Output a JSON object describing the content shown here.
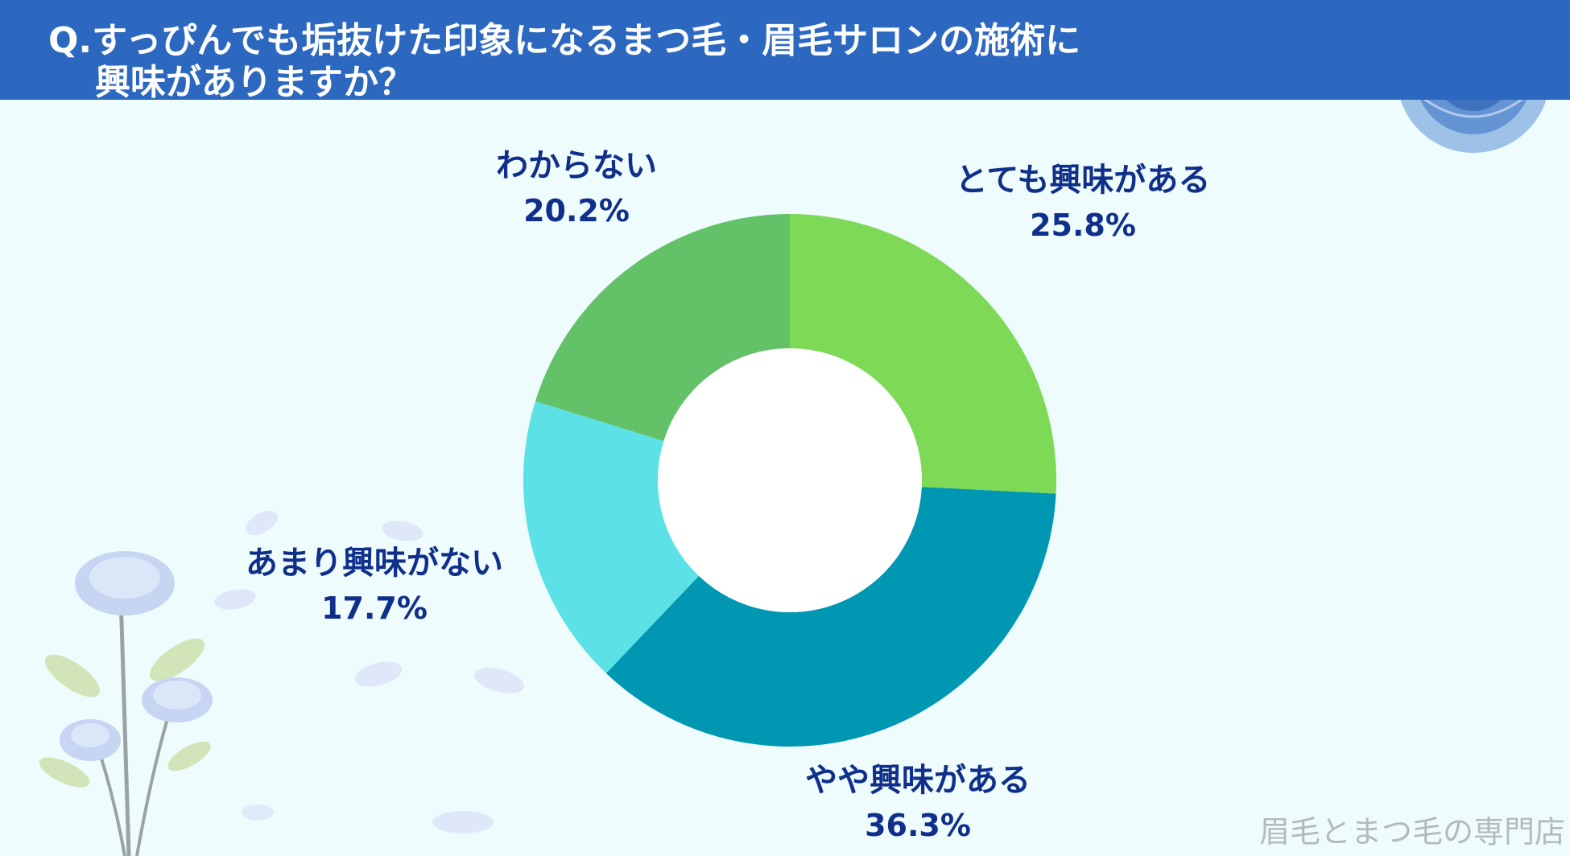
{
  "header": {
    "question_line1": "Q.すっぴんでも垢抜けた印象になるまつ毛・眉毛サロンの施術に",
    "question_line2": "興味がありますか？"
  },
  "watermark": "眉毛とまつ毛の専門店",
  "colors": {
    "header_bg": "#2d68c0",
    "page_bg": "#effcfd",
    "label_text": "#0f2f8a"
  },
  "chart_data": {
    "type": "pie",
    "style": "donut",
    "start_angle": "12 o'clock",
    "direction": "clockwise",
    "title": "",
    "slices": [
      {
        "label": "とても興味がある",
        "value": 25.8,
        "value_label": "25.8%",
        "color": "#7ed957"
      },
      {
        "label": "やや興味がある",
        "value": 36.3,
        "value_label": "36.3%",
        "color": "#0097b2"
      },
      {
        "label": "あまり興味がない",
        "value": 17.7,
        "value_label": "17.7%",
        "color": "#5ce1e6"
      },
      {
        "label": "わからない",
        "value": 20.2,
        "value_label": "20.2%",
        "color": "#63c167"
      }
    ]
  }
}
